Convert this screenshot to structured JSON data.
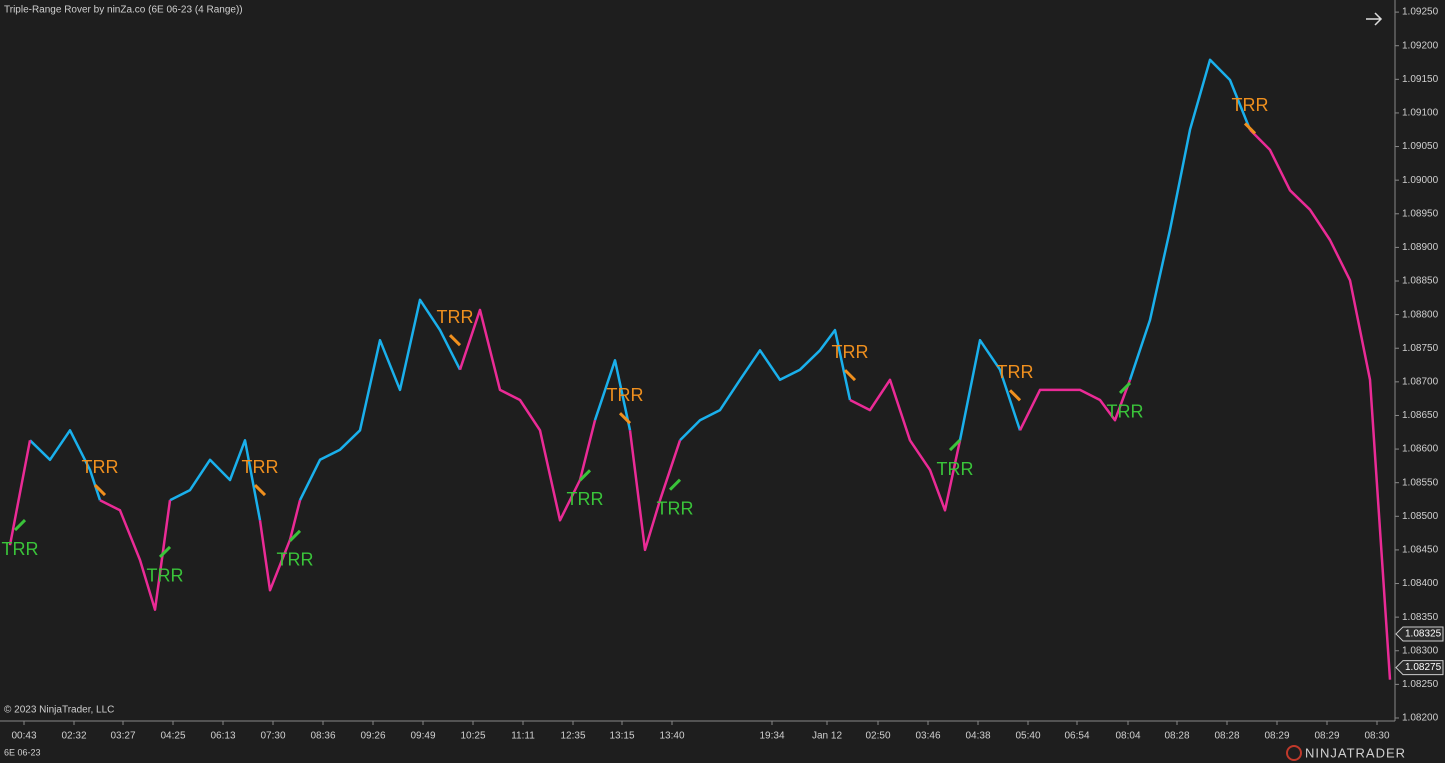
{
  "chart_data": {
    "type": "line",
    "title": "Triple-Range Rover by ninZa.co (6E 06-23 (4 Range))",
    "instrument": "6E 06-23",
    "copyright": "© 2023 NinjaTrader, LLC",
    "brand": "NINJATRADER",
    "x": [
      1,
      3,
      5,
      7,
      9,
      10,
      12,
      14,
      15.5,
      17,
      19,
      21,
      23,
      24.5,
      26,
      27,
      29,
      30,
      32,
      34,
      36,
      38,
      40,
      42,
      44,
      46,
      48,
      50,
      52,
      54,
      56,
      58,
      59.5,
      61.5,
      63,
      64.5,
      66,
      68,
      70,
      72,
      74,
      76,
      78,
      80,
      82,
      83.5,
      85,
      87,
      89,
      91,
      93,
      94.5,
      96,
      98,
      100,
      102,
      104,
      106,
      108,
      110,
      111.5,
      113,
      115,
      117,
      119,
      121,
      123,
      125,
      127,
      129,
      131,
      133,
      135,
      137,
      139
    ],
    "xlim": [
      0,
      139.5
    ],
    "xticks": [
      {
        "value": 2.4,
        "label": "00:43"
      },
      {
        "value": 7.4,
        "label": "02:32"
      },
      {
        "value": 12.3,
        "label": "03:27"
      },
      {
        "value": 17.3,
        "label": "04:25"
      },
      {
        "value": 22.3,
        "label": "06:13"
      },
      {
        "value": 27.3,
        "label": "07:30"
      },
      {
        "value": 32.3,
        "label": "08:36"
      },
      {
        "value": 37.3,
        "label": "09:26"
      },
      {
        "value": 42.3,
        "label": "09:49"
      },
      {
        "value": 47.3,
        "label": "10:25"
      },
      {
        "value": 52.3,
        "label": "11:11"
      },
      {
        "value": 57.3,
        "label": "12:35"
      },
      {
        "value": 62.2,
        "label": "13:15"
      },
      {
        "value": 67.2,
        "label": "13:40"
      },
      {
        "value": 77.2,
        "label": "19:34"
      },
      {
        "value": 82.7,
        "label": "Jan 12"
      },
      {
        "value": 87.8,
        "label": "02:50"
      },
      {
        "value": 92.8,
        "label": "03:46"
      },
      {
        "value": 97.8,
        "label": "04:38"
      },
      {
        "value": 102.8,
        "label": "05:40"
      },
      {
        "value": 107.7,
        "label": "06:54"
      },
      {
        "value": 112.8,
        "label": "08:04"
      },
      {
        "value": 117.7,
        "label": "08:28"
      },
      {
        "value": 122.7,
        "label": "08:28"
      },
      {
        "value": 127.7,
        "label": "08:29"
      },
      {
        "value": 132.7,
        "label": "08:29"
      },
      {
        "value": 137.7,
        "label": "08:30"
      }
    ],
    "ylim": [
      1.08197,
      1.09268
    ],
    "yticks": [
      {
        "value": 1.082,
        "label": "1.08200"
      },
      {
        "value": 1.0825,
        "label": "1.08250"
      },
      {
        "value": 1.083,
        "label": "1.08300"
      },
      {
        "value": 1.0835,
        "label": "1.08350"
      },
      {
        "value": 1.084,
        "label": "1.08400"
      },
      {
        "value": 1.0845,
        "label": "1.08450"
      },
      {
        "value": 1.085,
        "label": "1.08500"
      },
      {
        "value": 1.0855,
        "label": "1.08550"
      },
      {
        "value": 1.086,
        "label": "1.08600"
      },
      {
        "value": 1.0865,
        "label": "1.08650"
      },
      {
        "value": 1.087,
        "label": "1.08700"
      },
      {
        "value": 1.0875,
        "label": "1.08750"
      },
      {
        "value": 1.088,
        "label": "1.08800"
      },
      {
        "value": 1.0885,
        "label": "1.08850"
      },
      {
        "value": 1.089,
        "label": "1.08900"
      },
      {
        "value": 1.0895,
        "label": "1.08950"
      },
      {
        "value": 1.09,
        "label": "1.09000"
      },
      {
        "value": 1.0905,
        "label": "1.09050"
      },
      {
        "value": 1.091,
        "label": "1.09100"
      },
      {
        "value": 1.0915,
        "label": "1.09150"
      },
      {
        "value": 1.092,
        "label": "1.09200"
      },
      {
        "value": 1.0925,
        "label": "1.09250"
      }
    ],
    "price_markers": [
      {
        "value": 1.08325,
        "label": "1.08325"
      },
      {
        "value": 1.08275,
        "label": "1.08275"
      }
    ],
    "series": [
      {
        "color": "#1ab0ec",
        "values": [
          null,
          1.08613,
          1.08584,
          1.08628,
          1.08569,
          1.08524,
          null,
          null,
          null,
          1.08524,
          1.08539,
          1.08584,
          1.08554,
          1.08613,
          1.08494,
          null,
          null,
          1.08524,
          1.08584,
          1.08599,
          1.08628,
          1.08762,
          1.08688,
          1.08822,
          1.08777,
          1.08718,
          null,
          null,
          null,
          null,
          null,
          null,
          1.08643,
          1.08732,
          1.08628,
          null,
          null,
          1.08613,
          1.08643,
          1.08658,
          1.08703,
          1.08747,
          1.08703,
          1.08718,
          1.08747,
          1.08777,
          1.08673,
          null,
          null,
          null,
          null,
          null,
          1.08613,
          1.08762,
          1.08718,
          1.08628,
          null,
          null,
          null,
          null,
          null,
          1.08703,
          1.08792,
          1.08926,
          1.09075,
          1.09179,
          1.09149,
          1.09075,
          null,
          null,
          null,
          null,
          null,
          null,
          null
        ]
      },
      {
        "color": "#ea2b96",
        "values": [
          1.08457,
          1.08613,
          null,
          null,
          null,
          1.08524,
          1.08509,
          1.08435,
          1.08361,
          1.08524,
          null,
          null,
          null,
          null,
          1.08494,
          1.0839,
          1.08465,
          1.08524,
          null,
          null,
          null,
          null,
          null,
          null,
          null,
          1.08718,
          1.08807,
          1.08688,
          1.08673,
          1.08628,
          1.08494,
          1.08554,
          1.08643,
          null,
          1.08628,
          1.0845,
          1.08524,
          1.08613,
          null,
          null,
          null,
          null,
          null,
          null,
          null,
          null,
          1.08673,
          1.08658,
          1.08703,
          1.08613,
          1.08569,
          1.08509,
          1.08613,
          null,
          null,
          1.08628,
          1.08688,
          1.08688,
          1.08688,
          1.08673,
          1.08643,
          1.08703,
          null,
          null,
          null,
          null,
          null,
          1.09075,
          1.09045,
          1.08985,
          1.08956,
          1.08911,
          1.08851,
          1.08703,
          1.08257
        ]
      }
    ],
    "signals": {
      "up_color": "#3ac43a",
      "down_color": "#f0901e",
      "items": [
        {
          "x": 2,
          "value": 1.08487,
          "direction": "up",
          "label": "TRR"
        },
        {
          "x": 10,
          "value": 1.08539,
          "direction": "down",
          "label": "TRR"
        },
        {
          "x": 16.5,
          "value": 1.08447,
          "direction": "up",
          "label": "TRR"
        },
        {
          "x": 26,
          "value": 1.08539,
          "direction": "down",
          "label": "TRR"
        },
        {
          "x": 29.5,
          "value": 1.08471,
          "direction": "up",
          "label": "TRR"
        },
        {
          "x": 45.5,
          "value": 1.08762,
          "direction": "down",
          "label": "TRR"
        },
        {
          "x": 58.5,
          "value": 1.08561,
          "direction": "up",
          "label": "TRR"
        },
        {
          "x": 62.5,
          "value": 1.08646,
          "direction": "down",
          "label": "TRR"
        },
        {
          "x": 67.5,
          "value": 1.08547,
          "direction": "up",
          "label": "TRR"
        },
        {
          "x": 85,
          "value": 1.0871,
          "direction": "down",
          "label": "TRR"
        },
        {
          "x": 95.5,
          "value": 1.08606,
          "direction": "up",
          "label": "TRR"
        },
        {
          "x": 101.5,
          "value": 1.0868,
          "direction": "down",
          "label": "TRR"
        },
        {
          "x": 112.5,
          "value": 1.08691,
          "direction": "up",
          "label": "TRR"
        },
        {
          "x": 125,
          "value": 1.09077,
          "direction": "down",
          "label": "TRR"
        }
      ]
    }
  }
}
